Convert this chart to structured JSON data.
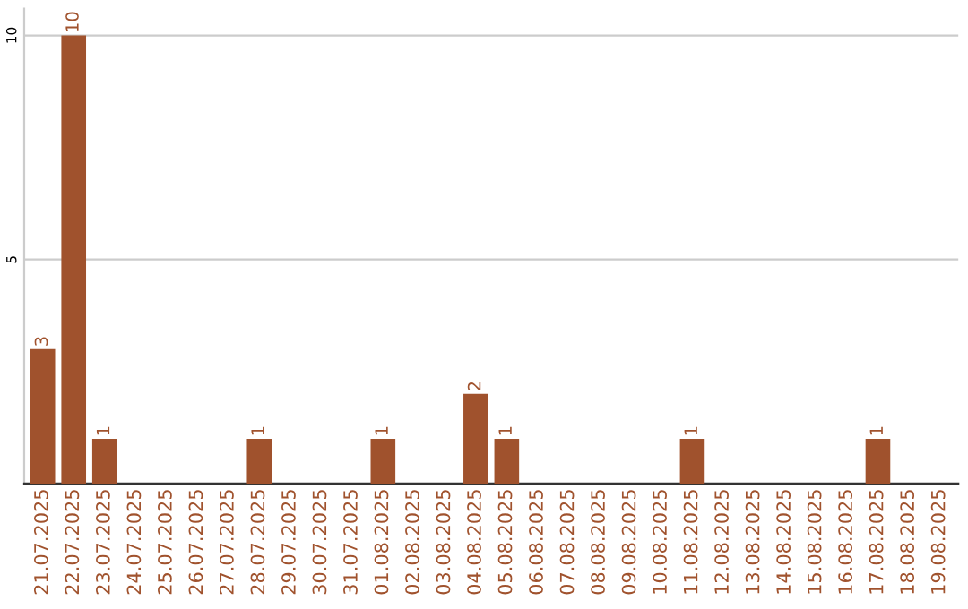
{
  "chart_data": {
    "type": "bar",
    "categories": [
      "21.07.2025",
      "22.07.2025",
      "23.07.2025",
      "24.07.2025",
      "25.07.2025",
      "26.07.2025",
      "27.07.2025",
      "28.07.2025",
      "29.07.2025",
      "30.07.2025",
      "31.07.2025",
      "01.08.2025",
      "02.08.2025",
      "03.08.2025",
      "04.08.2025",
      "05.08.2025",
      "06.08.2025",
      "07.08.2025",
      "08.08.2025",
      "09.08.2025",
      "10.08.2025",
      "11.08.2025",
      "12.08.2025",
      "13.08.2025",
      "14.08.2025",
      "15.08.2025",
      "16.08.2025",
      "17.08.2025",
      "18.08.2025",
      "19.08.2025"
    ],
    "values": [
      3,
      10,
      1,
      0,
      0,
      0,
      0,
      1,
      0,
      0,
      0,
      1,
      0,
      0,
      2,
      1,
      0,
      0,
      0,
      0,
      0,
      1,
      0,
      0,
      0,
      0,
      0,
      1,
      0,
      0
    ],
    "value_labels": [
      "3",
      "10",
      "1",
      null,
      null,
      null,
      null,
      "1",
      null,
      null,
      null,
      "1",
      null,
      null,
      "2",
      "1",
      null,
      null,
      null,
      null,
      null,
      "1",
      null,
      null,
      null,
      null,
      null,
      "1",
      null,
      null
    ],
    "color": "#a0522d",
    "ylim": [
      0,
      10.6
    ],
    "yticks": [
      5,
      10
    ],
    "grid": "y"
  }
}
